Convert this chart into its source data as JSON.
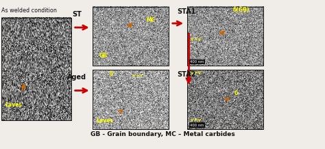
{
  "bg_color": "#f0ede8",
  "arrow_color": "#cc0000",
  "text_color_black": "#111111",
  "text_color_yellow": "#ffff00",
  "text_color_orange": "#ff8800",
  "layout": {
    "panel_as_welded": [
      0.005,
      0.12,
      0.215,
      0.75
    ],
    "panel_st": [
      0.285,
      0.52,
      0.235,
      0.43
    ],
    "panel_aged": [
      0.285,
      0.06,
      0.235,
      0.43
    ],
    "panel_sta1": [
      0.575,
      0.52,
      0.235,
      0.43
    ],
    "panel_sta2": [
      0.575,
      0.06,
      0.235,
      0.43
    ]
  },
  "labels": {
    "as_welded_title": "As welded condition",
    "laves": "Laves",
    "st_label": "ST",
    "aged_label": "Aged",
    "gb_label": "GB",
    "mc_label": "MC",
    "laves2": "Laves",
    "delta_label": "δ",
    "gamma_prime_aged": "γ'+γ''",
    "sta1_label": "STA1",
    "sta2_label": "STA2",
    "delta_gb": "δ(GB)",
    "gamma_sta1": "γ'+γ''",
    "delta_sta2": "δ",
    "gamma_sta2_top": "γ'+γ''",
    "gamma_sta2_bot": "γ'+γ''",
    "scale1": "400 nm",
    "scale2": "400 nm",
    "caption": "GB - Grain boundary, MC – Metal carbides"
  },
  "micro_seeds": {
    "as_welded": {
      "seed": 1,
      "base": 0.45,
      "noise": 0.28
    },
    "st": {
      "seed": 2,
      "base": 0.58,
      "noise": 0.2
    },
    "aged": {
      "seed": 3,
      "base": 0.62,
      "noise": 0.22
    },
    "sta1": {
      "seed": 4,
      "base": 0.56,
      "noise": 0.2
    },
    "sta2": {
      "seed": 5,
      "base": 0.48,
      "noise": 0.22
    }
  }
}
